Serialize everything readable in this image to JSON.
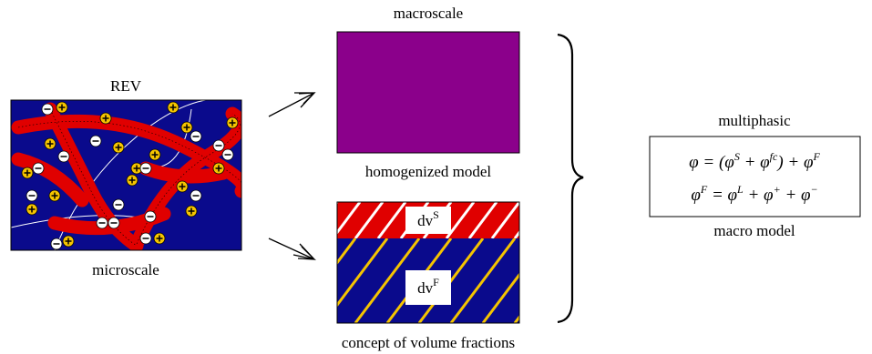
{
  "rev": {
    "title": "REV",
    "caption": "microscale"
  },
  "macro": {
    "title": "macroscale",
    "caption": "homogenized model"
  },
  "fractions": {
    "solid": [
      {
        "base": "dv",
        "sup": "S"
      }
    ],
    "fluid": [
      {
        "base": "dv",
        "sup": "F"
      }
    ],
    "caption": "concept of volume fractions"
  },
  "model": {
    "title": "multiphasic",
    "caption": "macro model",
    "equations": [
      [
        {
          "base": "φ = (φ",
          "sup": "S"
        },
        {
          "base": " + φ",
          "sup": "fc"
        },
        {
          "base": ") + φ",
          "sup": "F"
        }
      ],
      [
        {
          "base": "φ",
          "sup": "F"
        },
        {
          "base": " = φ",
          "sup": "L"
        },
        {
          "base": " + φ",
          "sup": "+"
        },
        {
          "base": " + φ",
          "sup": "−"
        }
      ]
    ]
  }
}
